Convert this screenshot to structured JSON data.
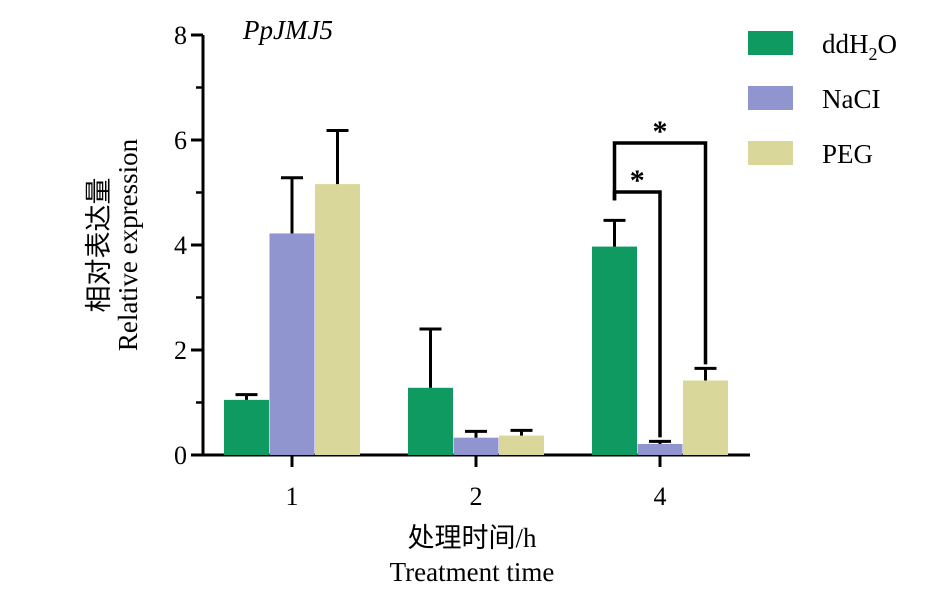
{
  "chart_data": {
    "type": "bar",
    "title": "PpJMJ5",
    "ylabel_cn": "相对表达量",
    "ylabel": "Relative expression",
    "xlabel_cn": "处理时间/h",
    "xlabel": "Treatment time",
    "ylim": [
      0,
      8
    ],
    "yticks": [
      "0",
      "2",
      "4",
      "6",
      "8"
    ],
    "categories": [
      "1",
      "2",
      "4"
    ],
    "series": [
      {
        "name": "ddH2O",
        "label_main": "ddH",
        "label_sub": "2",
        "label_tail": "O",
        "color": "#0f9a62",
        "values": [
          1.05,
          1.28,
          3.97
        ],
        "errors": [
          0.1,
          1.12,
          0.5
        ]
      },
      {
        "name": "NaCI",
        "label_main": "NaCI",
        "color": "#9095d0",
        "values": [
          4.22,
          0.33,
          0.21
        ],
        "errors": [
          1.06,
          0.12,
          0.05
        ]
      },
      {
        "name": "PEG",
        "label_main": "PEG",
        "color": "#d9d79a",
        "values": [
          5.16,
          0.37,
          1.42
        ],
        "errors": [
          1.02,
          0.1,
          0.23
        ]
      }
    ],
    "significance": [
      {
        "category": "4",
        "from_series": 0,
        "to_series": 1,
        "label": "*"
      },
      {
        "category": "4",
        "from_series": 0,
        "to_series": 2,
        "label": "*"
      }
    ],
    "legend_position": "top-right",
    "grid": false
  }
}
